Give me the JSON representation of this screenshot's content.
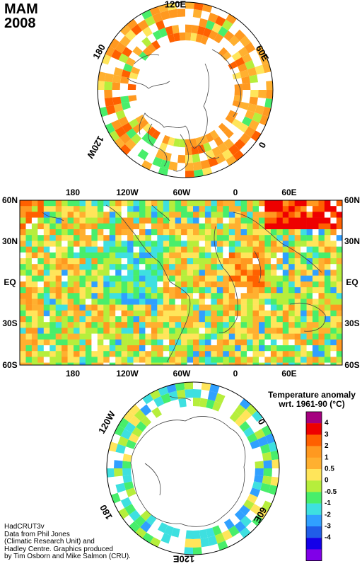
{
  "header": {
    "season": "MAM",
    "year": "2008"
  },
  "north_map": {
    "labels": [
      {
        "text": "120E",
        "rotate": 0
      },
      {
        "text": "60E",
        "rotate": 60
      },
      {
        "text": "0",
        "rotate": 120
      },
      {
        "text": "120W",
        "rotate": 120
      },
      {
        "text": "180",
        "rotate": -60
      }
    ]
  },
  "world_map": {
    "top_labels": [
      "180",
      "120W",
      "60W",
      "0",
      "60E"
    ],
    "bottom_labels": [
      "180",
      "120W",
      "60W",
      "0",
      "60E"
    ],
    "left_labels": [
      "60N",
      "30N",
      "EQ",
      "30S",
      "60S"
    ],
    "right_labels": [
      "60N",
      "30N",
      "EQ",
      "30S",
      "60S"
    ]
  },
  "south_map": {
    "labels": [
      {
        "text": "120W",
        "rotate": -60
      },
      {
        "text": "0",
        "rotate": 60
      },
      {
        "text": "60E",
        "rotate": 120
      },
      {
        "text": "120E",
        "rotate": 180
      },
      {
        "text": "180",
        "rotate": -120
      }
    ]
  },
  "legend": {
    "title_line1": "Temperature anomaly",
    "title_line2": "wrt. 1961-90  (°C)",
    "colors": [
      "#a5007f",
      "#ee0000",
      "#ff6000",
      "#ff9920",
      "#ffb030",
      "#ffe55a",
      "#b6ee3c",
      "#48ee6b",
      "#3ee0e0",
      "#30a0ff",
      "#205de8",
      "#1400e8",
      "#8000e8"
    ],
    "labels": [
      "4",
      "3",
      "2",
      "1",
      "0.5",
      "0",
      "-0.5",
      "-1",
      "-2",
      "-3",
      "-4"
    ]
  },
  "credit": [
    "HadCRUT3v",
    "Data from Phil Jones",
    "(Climatic Research Unit) and",
    "Hadley Centre.  Graphics produced",
    "by Tim Osborn and Mike Salmon (CRU)."
  ]
}
